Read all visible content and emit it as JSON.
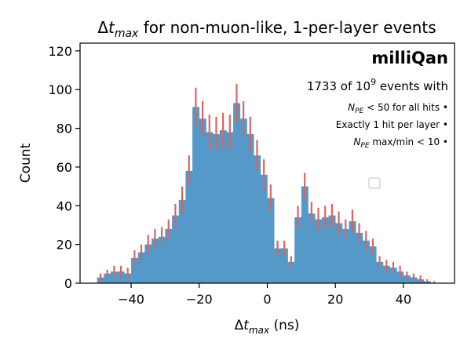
{
  "chart_data": {
    "type": "bar",
    "title": {
      "prefix": "Δ",
      "var": "t",
      "sub": "max",
      "suffix": " for non-muon-like, 1-per-layer events"
    },
    "xlabel": {
      "prefix": "Δ",
      "var": "t",
      "sub": "max",
      "suffix": " (ns)"
    },
    "ylabel": "Count",
    "xlim": [
      -55,
      55
    ],
    "ylim": [
      0,
      124
    ],
    "xticks": [
      -40,
      -20,
      0,
      20,
      40
    ],
    "yticks": [
      0,
      20,
      40,
      60,
      80,
      100,
      120
    ],
    "bin_width": 2,
    "bin_edges_start": -50,
    "values": [
      3,
      5,
      6,
      6,
      5,
      13,
      16,
      20,
      23,
      24,
      28,
      35,
      43,
      58,
      91,
      85,
      78,
      77,
      79,
      78,
      93,
      85,
      77,
      66,
      56,
      44,
      18,
      18,
      11,
      34,
      50,
      36,
      33,
      34,
      35,
      31,
      28,
      32,
      26,
      22,
      19,
      11,
      9,
      8,
      6,
      4,
      3,
      2,
      1,
      0
    ],
    "errors": [
      2,
      2,
      3,
      3,
      3,
      4,
      4,
      5,
      5,
      5,
      5,
      6,
      7,
      8,
      10,
      9,
      9,
      9,
      9,
      9,
      10,
      9,
      9,
      8,
      8,
      7,
      4,
      4,
      3,
      6,
      7,
      6,
      6,
      6,
      6,
      6,
      5,
      6,
      5,
      5,
      4,
      3,
      3,
      3,
      3,
      2,
      2,
      2,
      1,
      1
    ],
    "bar_color": "#5499c7",
    "error_color": "#d96464",
    "grid": false,
    "annotations": {
      "brand": "milliQan",
      "events": {
        "text": "1733 of 10",
        "sup": "9",
        "suffix": " events with"
      },
      "cut1": {
        "var": "N",
        "sub": "PE",
        "text": " < 50 for all hits •"
      },
      "cut2": "Exactly 1 hit per layer •",
      "cut3": {
        "var": "N",
        "sub": "PE",
        "text": " max/min < 10 •"
      }
    }
  }
}
